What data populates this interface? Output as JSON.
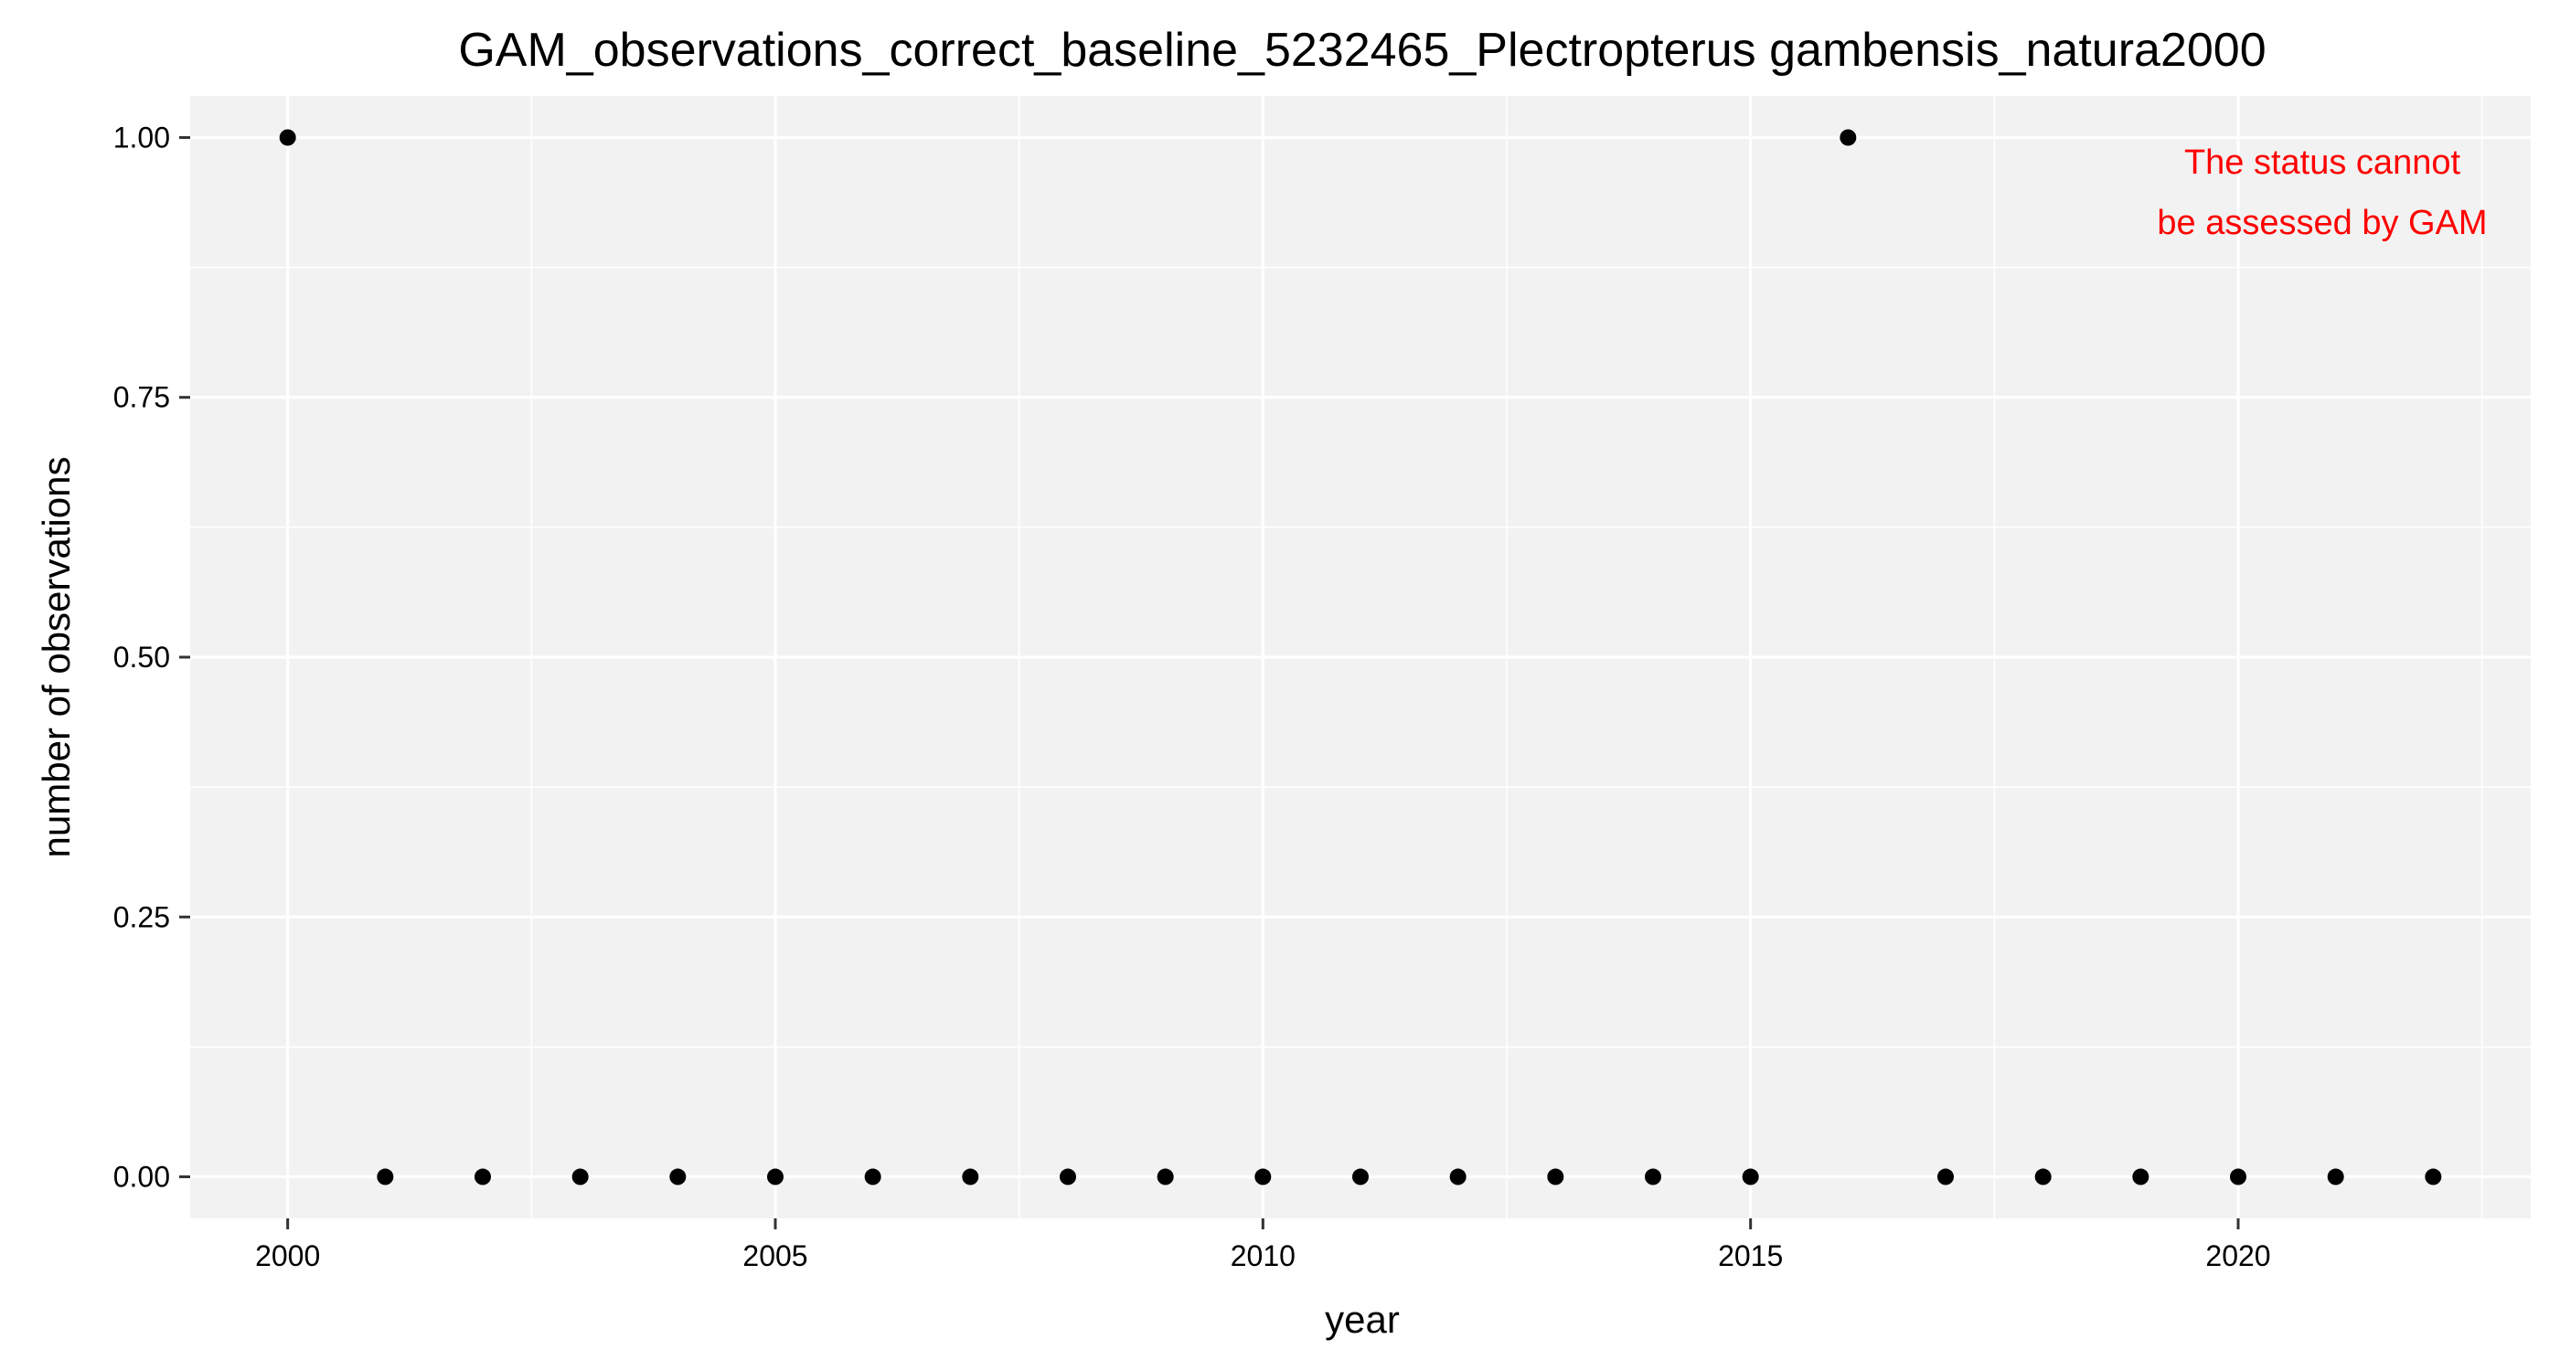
{
  "chart_data": {
    "type": "scatter",
    "title": "GAM_observations_correct_baseline_5232465_Plectropterus gambensis_natura2000",
    "xlabel": "year",
    "ylabel": "number of observations",
    "xlim": [
      1999,
      2023
    ],
    "ylim": [
      -0.04,
      1.04
    ],
    "x_ticks": [
      2000,
      2005,
      2010,
      2015,
      2020
    ],
    "x_tick_labels": [
      "2000",
      "2005",
      "2010",
      "2015",
      "2020"
    ],
    "x_minor_ticks": [
      2002.5,
      2007.5,
      2012.5,
      2017.5,
      2022.5
    ],
    "y_ticks": [
      0,
      0.25,
      0.5,
      0.75,
      1
    ],
    "y_tick_labels": [
      "0.00",
      "0.25",
      "0.50",
      "0.75",
      "1.00"
    ],
    "y_minor_ticks": [
      0.125,
      0.375,
      0.625,
      0.875
    ],
    "grid": true,
    "x": [
      2000,
      2001,
      2002,
      2003,
      2004,
      2005,
      2006,
      2007,
      2008,
      2009,
      2010,
      2011,
      2012,
      2013,
      2014,
      2015,
      2016,
      2017,
      2018,
      2019,
      2020,
      2021,
      2022
    ],
    "y": [
      1,
      0,
      0,
      0,
      0,
      0,
      0,
      0,
      0,
      0,
      0,
      0,
      0,
      0,
      0,
      0,
      1,
      0,
      0,
      0,
      0,
      0,
      0
    ],
    "annotation": {
      "lines": [
        "The status cannot",
        "be assessed by GAM"
      ],
      "color": "#ff0000",
      "position": "top-right"
    },
    "colors": {
      "panel_background": "#f2f2f2",
      "grid": "#ffffff",
      "points": "#000000"
    }
  }
}
